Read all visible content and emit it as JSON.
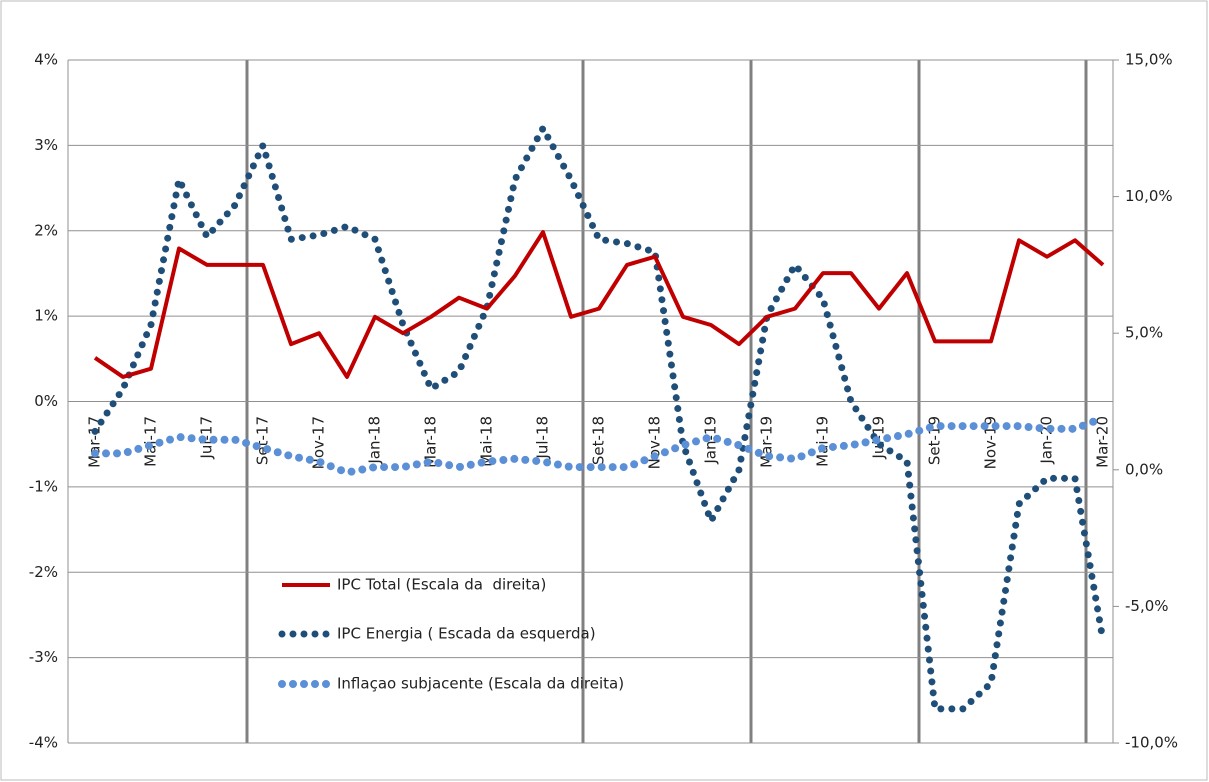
{
  "chart_data": {
    "type": "line",
    "categories": [
      "Mar-17",
      null,
      "Mai-17",
      null,
      "Jul-17",
      null,
      "Set-17",
      null,
      "Nov-17",
      null,
      "Jan-18",
      null,
      "Mar-18",
      null,
      "Mai-18",
      null,
      "Jul-18",
      null,
      "Set-18",
      null,
      "Nov-18",
      null,
      "Jan-19",
      null,
      "Mar-19",
      null,
      "Mai-19",
      null,
      "Jul-19",
      null,
      "Set-19",
      null,
      "Nov-19",
      null,
      "Jan-20",
      null,
      "Mar-20"
    ],
    "series": [
      {
        "name": "IPC Total (Escala da  direita)",
        "color": "#c00000",
        "axis": "y2",
        "style": "solid",
        "values": [
          4.1,
          3.4,
          3.7,
          8.1,
          7.5,
          7.5,
          7.5,
          4.6,
          5.0,
          3.4,
          5.6,
          5.0,
          5.6,
          6.3,
          5.9,
          7.1,
          8.7,
          5.6,
          5.9,
          7.5,
          7.8,
          5.6,
          5.3,
          4.6,
          5.6,
          5.9,
          7.2,
          7.2,
          5.9,
          7.2,
          4.7,
          4.7,
          4.7,
          8.4,
          7.8,
          8.4,
          7.5
        ]
      },
      {
        "name": "IPC Energia ( Escada da esquerda)",
        "color": "#1f4e79",
        "axis": "y",
        "style": "dotted",
        "values": [
          -0.35,
          0.15,
          0.9,
          2.6,
          1.93,
          2.3,
          3.0,
          1.9,
          1.95,
          2.05,
          1.9,
          0.9,
          0.15,
          0.35,
          1.1,
          2.6,
          3.2,
          2.6,
          1.9,
          1.85,
          1.75,
          -0.5,
          -1.4,
          -0.8,
          1.0,
          1.6,
          1.2,
          0.0,
          -0.5,
          -0.7,
          -3.6,
          -3.6,
          -3.3,
          -1.2,
          -0.9,
          -0.9,
          -2.8
        ]
      },
      {
        "name": "Inflaçao subjacente (Escala da direita)",
        "color": "#5b8fd6",
        "axis": "y2",
        "style": "dotted",
        "values": [
          0.6,
          0.6,
          0.9,
          1.2,
          1.1,
          1.1,
          0.8,
          0.5,
          0.3,
          -0.1,
          0.1,
          0.1,
          0.3,
          0.1,
          0.3,
          0.4,
          0.3,
          0.1,
          0.1,
          0.1,
          0.5,
          0.9,
          1.2,
          0.9,
          0.5,
          0.4,
          0.8,
          0.9,
          1.1,
          1.3,
          1.6,
          1.6,
          1.6,
          1.6,
          1.5,
          1.5,
          1.9
        ]
      }
    ],
    "ylim": [
      -4,
      4
    ],
    "yticks": [
      {
        "value": 4,
        "label": "4%"
      },
      {
        "value": 3,
        "label": "3%"
      },
      {
        "value": 2,
        "label": "2%"
      },
      {
        "value": 1,
        "label": "1%"
      },
      {
        "value": 0,
        "label": "0%"
      },
      {
        "value": -1,
        "label": "-1%"
      },
      {
        "value": -2,
        "label": "-2%"
      },
      {
        "value": -3,
        "label": "-3%"
      },
      {
        "value": -4,
        "label": "-4%"
      }
    ],
    "y2lim": [
      -10,
      15
    ],
    "y2ticks": [
      {
        "value": 15,
        "label": "15,0%"
      },
      {
        "value": 10,
        "label": "10,0%"
      },
      {
        "value": 5,
        "label": "5,0%"
      },
      {
        "value": 0,
        "label": "0,0%"
      },
      {
        "value": -5,
        "label": "-5,0%"
      },
      {
        "value": -10,
        "label": "-10,0%"
      }
    ],
    "grid": true
  }
}
